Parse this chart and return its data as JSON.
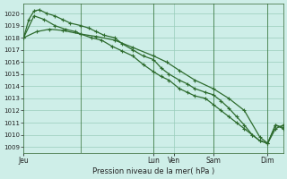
{
  "background_color": "#ceeee8",
  "grid_color": "#99ccbb",
  "line_color": "#2d6b2d",
  "xlabel": "Pression niveau de la mer( hPa )",
  "ylim": [
    1008.5,
    1020.8
  ],
  "yticks": [
    1009,
    1010,
    1011,
    1012,
    1013,
    1014,
    1015,
    1016,
    1017,
    1018,
    1019,
    1020
  ],
  "vlines_x": [
    0.22,
    0.5,
    0.73,
    0.94
  ],
  "vline_colors": [
    "#336633",
    "#336633",
    "#336633",
    "#336633"
  ],
  "series1_x": [
    0.0,
    0.02,
    0.04,
    0.06,
    0.09,
    0.12,
    0.15,
    0.18,
    0.22,
    0.25,
    0.28,
    0.31,
    0.35,
    0.38,
    0.42,
    0.46,
    0.5,
    0.53,
    0.56,
    0.6,
    0.63,
    0.66,
    0.7,
    0.73,
    0.76,
    0.79,
    0.82,
    0.85,
    0.88,
    0.91,
    0.94,
    0.97,
    1.0
  ],
  "series1_y": [
    1018.0,
    1019.5,
    1020.2,
    1020.3,
    1020.0,
    1019.8,
    1019.5,
    1019.2,
    1019.0,
    1018.8,
    1018.5,
    1018.2,
    1018.0,
    1017.5,
    1017.0,
    1016.5,
    1016.2,
    1015.5,
    1015.0,
    1014.5,
    1014.2,
    1013.8,
    1013.5,
    1013.3,
    1012.8,
    1012.2,
    1011.5,
    1010.8,
    1010.0,
    1009.5,
    1009.3,
    1010.8,
    1010.6
  ],
  "series2_x": [
    0.0,
    0.04,
    0.08,
    0.12,
    0.16,
    0.2,
    0.22,
    0.26,
    0.3,
    0.34,
    0.38,
    0.42,
    0.46,
    0.5,
    0.53,
    0.56,
    0.6,
    0.63,
    0.66,
    0.7,
    0.73,
    0.76,
    0.79,
    0.82,
    0.85,
    0.88,
    0.91,
    0.94,
    0.97,
    1.0
  ],
  "series2_y": [
    1018.0,
    1019.8,
    1019.5,
    1019.0,
    1018.7,
    1018.5,
    1018.3,
    1018.0,
    1017.8,
    1017.3,
    1016.9,
    1016.5,
    1015.8,
    1015.2,
    1014.8,
    1014.5,
    1013.8,
    1013.5,
    1013.2,
    1013.0,
    1012.5,
    1012.0,
    1011.5,
    1011.0,
    1010.5,
    1010.0,
    1009.5,
    1009.3,
    1010.8,
    1010.5
  ],
  "series3_x": [
    0.0,
    0.05,
    0.1,
    0.15,
    0.22,
    0.28,
    0.35,
    0.42,
    0.5,
    0.55,
    0.6,
    0.66,
    0.73,
    0.79,
    0.85,
    0.91,
    0.94,
    0.97,
    1.0
  ],
  "series3_y": [
    1018.0,
    1018.5,
    1018.7,
    1018.6,
    1018.3,
    1018.1,
    1017.8,
    1017.2,
    1016.5,
    1016.0,
    1015.3,
    1014.5,
    1013.8,
    1013.0,
    1012.0,
    1009.8,
    1009.3,
    1010.5,
    1010.8
  ],
  "xtick_positions": [
    0.0,
    0.5,
    0.58,
    0.73,
    0.94
  ],
  "xtick_labels": [
    "Jeu",
    "Lun",
    "Ven",
    "Sam",
    "Dim"
  ],
  "figsize": [
    3.2,
    2.0
  ],
  "dpi": 100
}
